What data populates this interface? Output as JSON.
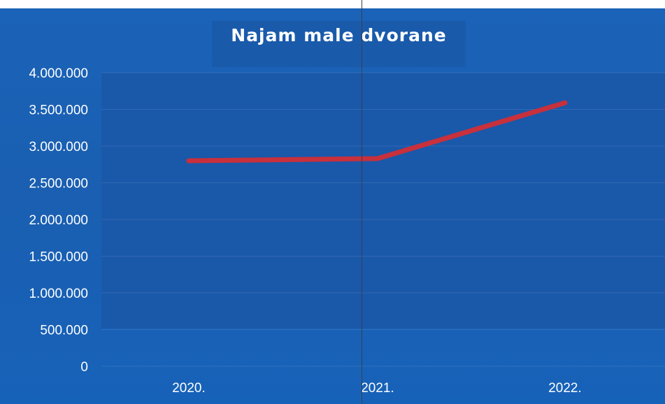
{
  "chart_data": {
    "type": "line",
    "title": "Najam male dvorane",
    "xlabel": "",
    "ylabel": "",
    "categories": [
      "2020.",
      "2021.",
      "2022."
    ],
    "series": [
      {
        "values": [
          2800000,
          2830000,
          3590000
        ],
        "color": "#c8303c"
      }
    ],
    "ylim": [
      0,
      4000000
    ],
    "y_ticks": [
      0,
      500000,
      1000000,
      1500000,
      2000000,
      2500000,
      3000000,
      3500000,
      4000000
    ],
    "y_tick_labels": [
      "0",
      "500.000",
      "1.000.000",
      "1.500.000",
      "2.000.000",
      "2.500.000",
      "3.000.000",
      "3.500.000",
      "4.000.000"
    ],
    "grid": true,
    "legend": "none"
  },
  "colors": {
    "background": "#1b63b8",
    "line": "#c8303c",
    "text": "#ffffff"
  }
}
